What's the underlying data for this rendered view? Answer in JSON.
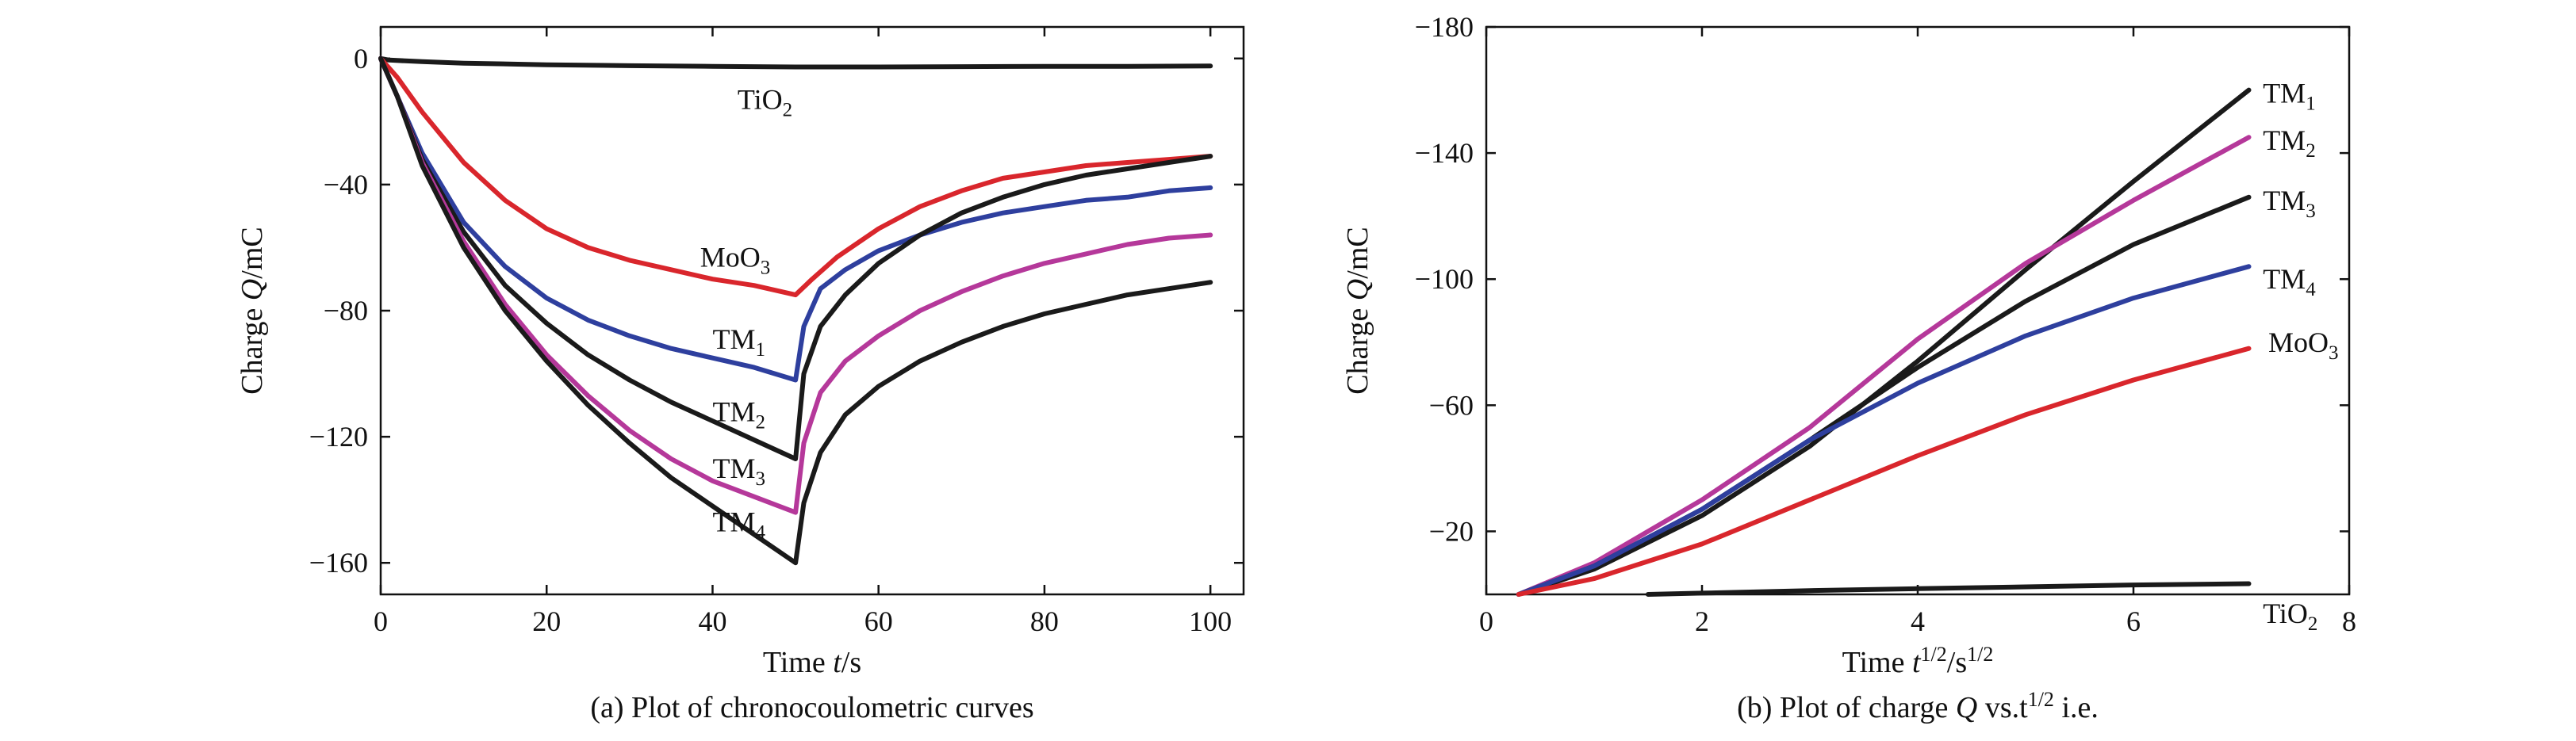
{
  "chart_data": [
    {
      "id": "a",
      "type": "line",
      "caption": "(a) Plot of chronocoulometric curves",
      "xlabel": {
        "prefix": "Time ",
        "italic": "t",
        "suffix": "/s"
      },
      "ylabel": {
        "prefix": "Charge ",
        "italic": "Q",
        "suffix": "/mC"
      },
      "xlim": [
        0,
        104
      ],
      "ylim": [
        -170,
        10
      ],
      "xticks": [
        0,
        20,
        40,
        60,
        80,
        100
      ],
      "yticks": [
        0,
        -40,
        -80,
        -120,
        -160
      ],
      "ytick_labels": [
        "0",
        "−40",
        "−80",
        "−120",
        "−160"
      ],
      "series": [
        {
          "name": "TiO2",
          "label": {
            "base": "TiO",
            "sub": "2"
          },
          "color": "#1a1a1a",
          "label_at": [
            43,
            -13
          ],
          "label_anchor": "start",
          "points": [
            [
              0,
              0
            ],
            [
              1,
              -0.5
            ],
            [
              5,
              -1.0
            ],
            [
              10,
              -1.5
            ],
            [
              20,
              -2.0
            ],
            [
              30,
              -2.3
            ],
            [
              40,
              -2.5
            ],
            [
              50,
              -2.7
            ],
            [
              60,
              -2.7
            ],
            [
              70,
              -2.6
            ],
            [
              80,
              -2.5
            ],
            [
              90,
              -2.5
            ],
            [
              100,
              -2.4
            ]
          ]
        },
        {
          "name": "MoO3",
          "label": {
            "base": "MoO",
            "sub": "3"
          },
          "color": "#d9262c",
          "label_at": [
            38.5,
            -63
          ],
          "label_anchor": "start",
          "points": [
            [
              0,
              0
            ],
            [
              2,
              -6
            ],
            [
              5,
              -17
            ],
            [
              10,
              -33
            ],
            [
              15,
              -45
            ],
            [
              20,
              -54
            ],
            [
              25,
              -60
            ],
            [
              30,
              -64
            ],
            [
              35,
              -67
            ],
            [
              40,
              -70
            ],
            [
              45,
              -72
            ],
            [
              50,
              -75
            ],
            [
              52,
              -70
            ],
            [
              55,
              -63
            ],
            [
              60,
              -54
            ],
            [
              65,
              -47
            ],
            [
              70,
              -42
            ],
            [
              75,
              -38
            ],
            [
              80,
              -36
            ],
            [
              85,
              -34
            ],
            [
              90,
              -33
            ],
            [
              95,
              -32
            ],
            [
              100,
              -31
            ]
          ]
        },
        {
          "name": "TM1",
          "label": {
            "base": "TM",
            "sub": "1"
          },
          "color": "#2e3f9e",
          "label_at": [
            40,
            -89
          ],
          "label_anchor": "start",
          "points": [
            [
              0,
              0
            ],
            [
              2,
              -12
            ],
            [
              5,
              -30
            ],
            [
              10,
              -52
            ],
            [
              15,
              -66
            ],
            [
              20,
              -76
            ],
            [
              25,
              -83
            ],
            [
              30,
              -88
            ],
            [
              35,
              -92
            ],
            [
              40,
              -95
            ],
            [
              45,
              -98
            ],
            [
              50,
              -102
            ],
            [
              51,
              -85
            ],
            [
              53,
              -73
            ],
            [
              56,
              -67
            ],
            [
              60,
              -61
            ],
            [
              65,
              -56
            ],
            [
              70,
              -52
            ],
            [
              75,
              -49
            ],
            [
              80,
              -47
            ],
            [
              85,
              -45
            ],
            [
              90,
              -44
            ],
            [
              95,
              -42
            ],
            [
              100,
              -41
            ]
          ]
        },
        {
          "name": "TM2",
          "label": {
            "base": "TM",
            "sub": "2"
          },
          "color": "#1a1a1a",
          "label_at": [
            40,
            -112
          ],
          "label_anchor": "start",
          "points": [
            [
              0,
              0
            ],
            [
              2,
              -12
            ],
            [
              5,
              -32
            ],
            [
              10,
              -55
            ],
            [
              15,
              -72
            ],
            [
              20,
              -84
            ],
            [
              25,
              -94
            ],
            [
              30,
              -102
            ],
            [
              35,
              -109
            ],
            [
              40,
              -115
            ],
            [
              45,
              -121
            ],
            [
              50,
              -127
            ],
            [
              51,
              -100
            ],
            [
              53,
              -85
            ],
            [
              56,
              -75
            ],
            [
              60,
              -65
            ],
            [
              65,
              -56
            ],
            [
              70,
              -49
            ],
            [
              75,
              -44
            ],
            [
              80,
              -40
            ],
            [
              85,
              -37
            ],
            [
              90,
              -35
            ],
            [
              95,
              -33
            ],
            [
              100,
              -31
            ]
          ]
        },
        {
          "name": "TM3",
          "label": {
            "base": "TM",
            "sub": "3"
          },
          "color": "#b5389a",
          "label_at": [
            40,
            -130
          ],
          "label_anchor": "start",
          "points": [
            [
              0,
              0
            ],
            [
              2,
              -12
            ],
            [
              5,
              -33
            ],
            [
              10,
              -58
            ],
            [
              15,
              -78
            ],
            [
              20,
              -94
            ],
            [
              25,
              -107
            ],
            [
              30,
              -118
            ],
            [
              35,
              -127
            ],
            [
              40,
              -134
            ],
            [
              45,
              -139
            ],
            [
              50,
              -144
            ],
            [
              51,
              -122
            ],
            [
              53,
              -106
            ],
            [
              56,
              -96
            ],
            [
              60,
              -88
            ],
            [
              65,
              -80
            ],
            [
              70,
              -74
            ],
            [
              75,
              -69
            ],
            [
              80,
              -65
            ],
            [
              85,
              -62
            ],
            [
              90,
              -59
            ],
            [
              95,
              -57
            ],
            [
              100,
              -56
            ]
          ]
        },
        {
          "name": "TM4",
          "label": {
            "base": "TM",
            "sub": "4"
          },
          "color": "#1a1a1a",
          "label_at": [
            40,
            -147
          ],
          "label_anchor": "start",
          "points": [
            [
              0,
              0
            ],
            [
              2,
              -12
            ],
            [
              5,
              -34
            ],
            [
              10,
              -60
            ],
            [
              15,
              -80
            ],
            [
              20,
              -96
            ],
            [
              25,
              -110
            ],
            [
              30,
              -122
            ],
            [
              35,
              -133
            ],
            [
              40,
              -142
            ],
            [
              45,
              -151
            ],
            [
              50,
              -160
            ],
            [
              51,
              -141
            ],
            [
              53,
              -125
            ],
            [
              56,
              -113
            ],
            [
              60,
              -104
            ],
            [
              65,
              -96
            ],
            [
              70,
              -90
            ],
            [
              75,
              -85
            ],
            [
              80,
              -81
            ],
            [
              85,
              -78
            ],
            [
              90,
              -75
            ],
            [
              95,
              -73
            ],
            [
              100,
              -71
            ]
          ]
        }
      ]
    },
    {
      "id": "b",
      "type": "line",
      "caption": {
        "prefix": "(b) Plot of charge ",
        "italic": "Q",
        "suffix": " vs.t",
        "sup": "1/2",
        "tail": " i.e."
      },
      "xlabel": {
        "prefix": "Time ",
        "italic": "t",
        "sup1": "1/2",
        "mid": "/s",
        "sup2": "1/2"
      },
      "ylabel": {
        "prefix": "Charge ",
        "italic": "Q",
        "suffix": "/mC"
      },
      "xlim": [
        0,
        8
      ],
      "ylim": [
        0,
        -180
      ],
      "xticks": [
        0,
        2,
        4,
        6,
        8
      ],
      "yticks": [
        -20,
        -60,
        -100,
        -140,
        -180
      ],
      "ytick_labels": [
        "−20",
        "−60",
        "−100",
        "−140",
        "−180"
      ],
      "series": [
        {
          "name": "TM1",
          "label": {
            "base": "TM",
            "sub": "1"
          },
          "color": "#1a1a1a",
          "label_at": [
            7.2,
            -159
          ],
          "label_anchor": "start",
          "points": [
            [
              0.3,
              0
            ],
            [
              1,
              -8
            ],
            [
              2,
              -25
            ],
            [
              3,
              -47
            ],
            [
              4,
              -74
            ],
            [
              5,
              -103
            ],
            [
              6,
              -131
            ],
            [
              7.07,
              -160
            ]
          ]
        },
        {
          "name": "TM2",
          "label": {
            "base": "TM",
            "sub": "2"
          },
          "color": "#b5389a",
          "label_at": [
            7.2,
            -144
          ],
          "label_anchor": "start",
          "points": [
            [
              0.3,
              0
            ],
            [
              1,
              -10
            ],
            [
              2,
              -30
            ],
            [
              3,
              -53
            ],
            [
              4,
              -81
            ],
            [
              5,
              -105
            ],
            [
              6,
              -125
            ],
            [
              7.07,
              -145
            ]
          ]
        },
        {
          "name": "TM3",
          "label": {
            "base": "TM",
            "sub": "3"
          },
          "color": "#1a1a1a",
          "label_at": [
            7.2,
            -125
          ],
          "label_anchor": "start",
          "points": [
            [
              0.3,
              0
            ],
            [
              1,
              -9
            ],
            [
              2,
              -27
            ],
            [
              3,
              -49
            ],
            [
              4,
              -72
            ],
            [
              5,
              -93
            ],
            [
              6,
              -111
            ],
            [
              7.07,
              -126
            ]
          ]
        },
        {
          "name": "TM4",
          "label": {
            "base": "TM",
            "sub": "4"
          },
          "color": "#2e3f9e",
          "label_at": [
            7.2,
            -100
          ],
          "label_anchor": "start",
          "points": [
            [
              0.3,
              0
            ],
            [
              1,
              -9
            ],
            [
              2,
              -27
            ],
            [
              3,
              -49
            ],
            [
              4,
              -67
            ],
            [
              5,
              -82
            ],
            [
              6,
              -94
            ],
            [
              7.07,
              -104
            ]
          ]
        },
        {
          "name": "MoO3",
          "label": {
            "base": "MoO",
            "sub": "3"
          },
          "color": "#d9262c",
          "label_at": [
            7.25,
            -80
          ],
          "label_anchor": "start",
          "points": [
            [
              0.3,
              0
            ],
            [
              1,
              -5
            ],
            [
              2,
              -16
            ],
            [
              3,
              -30
            ],
            [
              4,
              -44
            ],
            [
              5,
              -57
            ],
            [
              6,
              -68
            ],
            [
              7.07,
              -78
            ]
          ]
        },
        {
          "name": "TiO2",
          "label": {
            "base": "TiO",
            "sub": "2"
          },
          "color": "#1a1a1a",
          "label_at": [
            7.2,
            6
          ],
          "label_anchor": "start",
          "points": [
            [
              1.5,
              0
            ],
            [
              2,
              -0.4
            ],
            [
              3,
              -1.2
            ],
            [
              4,
              -1.8
            ],
            [
              5,
              -2.4
            ],
            [
              6,
              -3.0
            ],
            [
              7.07,
              -3.4
            ]
          ]
        }
      ]
    }
  ]
}
